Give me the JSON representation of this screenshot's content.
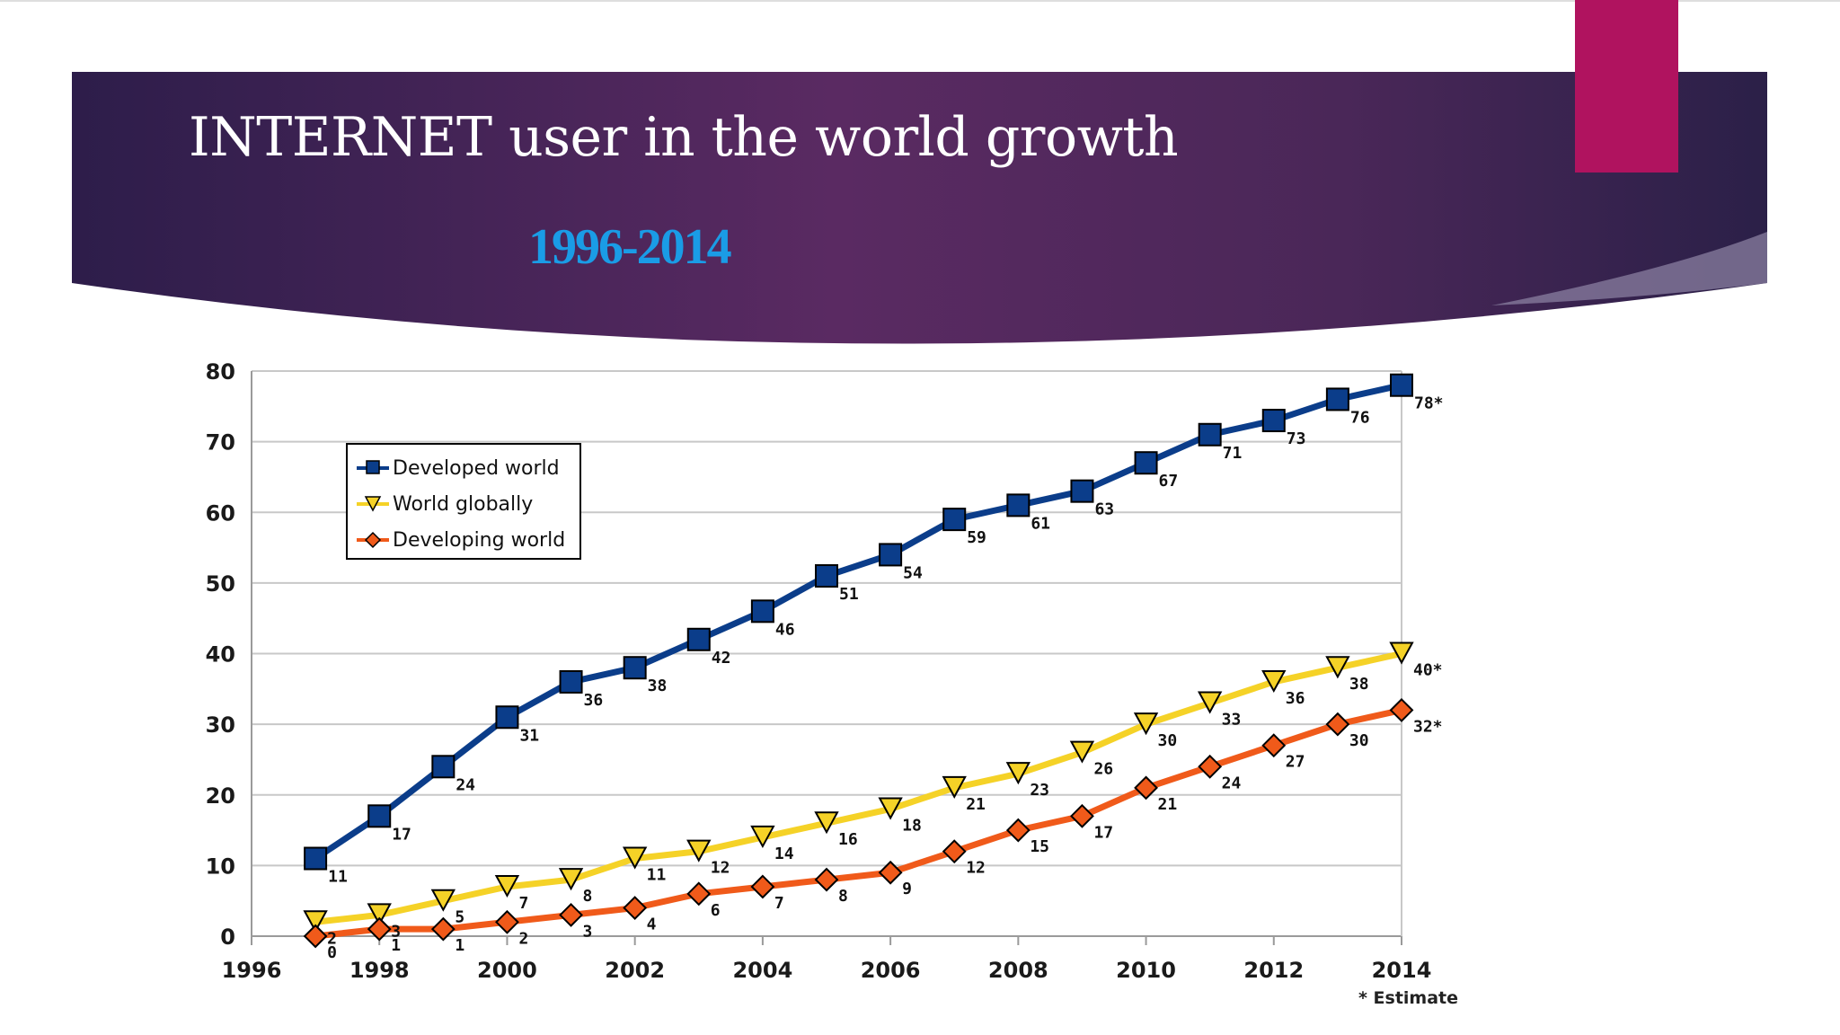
{
  "slide": {
    "title": "INTERNET user in the world growth",
    "subtitle": "1996-2014",
    "header_color": "#3b2353",
    "accent_color": "#b0135f",
    "subtitle_color": "#1a9ce6"
  },
  "chart_data": {
    "type": "line",
    "x": [
      1997,
      1998,
      1999,
      2000,
      2001,
      2002,
      2003,
      2004,
      2005,
      2006,
      2007,
      2008,
      2009,
      2010,
      2011,
      2012,
      2013,
      2014
    ],
    "xlim": [
      1996,
      2014
    ],
    "ylim": [
      0,
      80
    ],
    "x_ticks": [
      "1996",
      "1998",
      "2000",
      "2002",
      "2004",
      "2006",
      "2008",
      "2010",
      "2012",
      "2014"
    ],
    "y_ticks": [
      "0",
      "10",
      "20",
      "30",
      "40",
      "50",
      "60",
      "70",
      "80"
    ],
    "grid": true,
    "legend_position": "top-left",
    "series": [
      {
        "name": "Developed world",
        "color": "#0b3d8a",
        "marker": "square",
        "values": [
          11,
          17,
          24,
          31,
          36,
          38,
          42,
          46,
          51,
          54,
          59,
          61,
          63,
          67,
          71,
          73,
          76,
          78
        ],
        "labels": [
          "11",
          "17",
          "24",
          "31",
          "36",
          "38",
          "42",
          "46",
          "51",
          "54",
          "59",
          "61",
          "63",
          "67",
          "71",
          "73",
          "76",
          "78*"
        ]
      },
      {
        "name": "World globally",
        "color": "#f5d227",
        "marker": "triangle-down",
        "values": [
          2,
          3,
          5,
          7,
          8,
          11,
          12,
          14,
          16,
          18,
          21,
          23,
          26,
          30,
          33,
          36,
          38,
          40
        ],
        "labels": [
          "2",
          "3",
          "5",
          "7",
          "8",
          "11",
          "12",
          "14",
          "16",
          "18",
          "21",
          "23",
          "26",
          "30",
          "33",
          "36",
          "38",
          "40*"
        ]
      },
      {
        "name": "Developing world",
        "color": "#f05a1a",
        "marker": "diamond",
        "values": [
          0,
          1,
          1,
          2,
          3,
          4,
          6,
          7,
          8,
          9,
          12,
          15,
          17,
          21,
          24,
          27,
          30,
          32
        ],
        "labels": [
          "0",
          "1",
          "1",
          "2",
          "3",
          "4",
          "6",
          "7",
          "8",
          "9",
          "12",
          "15",
          "17",
          "21",
          "24",
          "27",
          "30",
          "32*"
        ]
      }
    ],
    "annotation": "* Estimate"
  }
}
